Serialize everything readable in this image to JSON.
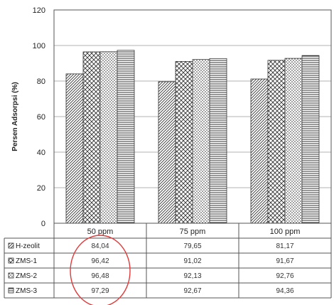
{
  "chart_data": {
    "type": "bar",
    "ylabel": "Persen Adsorpsi (%)",
    "xlabel": "",
    "title": "",
    "ylim": [
      0,
      120
    ],
    "yticks": [
      0,
      20,
      40,
      60,
      80,
      100,
      120
    ],
    "categories": [
      "50 ppm",
      "75 ppm",
      "100 ppm"
    ],
    "series": [
      {
        "name": "H-zeolit",
        "values": [
          84.04,
          79.65,
          81.17
        ],
        "labels": [
          "84,04",
          "79,65",
          "81,17"
        ],
        "pattern": "diagonal-hatch"
      },
      {
        "name": "ZMS-1",
        "values": [
          96.42,
          91.02,
          91.67
        ],
        "labels": [
          "96,42",
          "91,02",
          "91,67"
        ],
        "pattern": "crosshatch"
      },
      {
        "name": "ZMS-2",
        "values": [
          96.48,
          92.13,
          92.76
        ],
        "labels": [
          "96,48",
          "92,13",
          "92,76"
        ],
        "pattern": "dots"
      },
      {
        "name": "ZMS-3",
        "values": [
          97.29,
          92.67,
          94.36
        ],
        "labels": [
          "97,29",
          "92,67",
          "94,36"
        ],
        "pattern": "horizontal-lines"
      }
    ],
    "grid": true,
    "legend": "data-table-below",
    "annotation": {
      "shape": "ellipse",
      "color": "#e03a3a",
      "highlights": "50 ppm column values"
    }
  }
}
